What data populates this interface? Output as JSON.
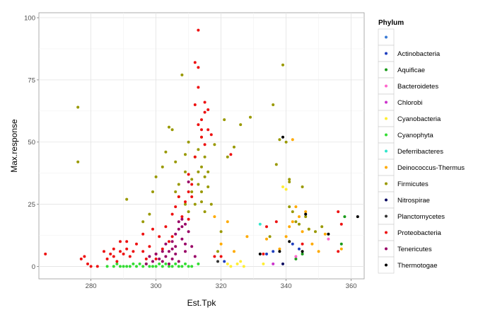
{
  "chart_data": {
    "type": "scatter",
    "title": "",
    "xlabel": "Est.Tpk",
    "ylabel": "Max.response",
    "xlim": [
      264,
      364
    ],
    "ylim": [
      -5,
      102
    ],
    "xticks": [
      280,
      300,
      320,
      340,
      360
    ],
    "yticks": [
      0,
      25,
      50,
      75,
      100
    ],
    "grid": true,
    "legend_position": "right",
    "legend_title": "Phylum",
    "series": [
      {
        "name": "",
        "color": "#3a7bd5",
        "points": []
      },
      {
        "name": "Actinobacteria",
        "color": "#1f3fbf",
        "points": [
          [
            321,
            2
          ],
          [
            334,
            5
          ],
          [
            336,
            6
          ],
          [
            342,
            9
          ],
          [
            344,
            7
          ]
        ]
      },
      {
        "name": "Aquificae",
        "color": "#1a9a1a",
        "points": [
          [
            343,
            3
          ],
          [
            345,
            5
          ],
          [
            357,
            9
          ],
          [
            358,
            20
          ]
        ]
      },
      {
        "name": "Bacteroidetes",
        "color": "#ff66cc",
        "points": [
          [
            343,
            4
          ],
          [
            353,
            11
          ]
        ]
      },
      {
        "name": "Chlorobi",
        "color": "#cc33cc",
        "points": [
          [
            336,
            1
          ]
        ]
      },
      {
        "name": "Cyanobacteria",
        "color": "#ffee33",
        "points": [
          [
            322,
            1
          ],
          [
            323,
            0
          ],
          [
            325,
            1
          ],
          [
            326,
            2
          ],
          [
            327,
            0
          ],
          [
            333,
            1
          ],
          [
            339,
            32
          ],
          [
            340,
            31
          ]
        ]
      },
      {
        "name": "Cyanophyta",
        "color": "#33dd33",
        "points": [
          [
            285,
            0
          ],
          [
            287,
            0
          ],
          [
            288,
            1
          ],
          [
            289,
            0
          ],
          [
            290,
            0
          ],
          [
            291,
            0
          ],
          [
            292,
            0
          ],
          [
            293,
            1
          ],
          [
            294,
            0
          ],
          [
            295,
            1
          ],
          [
            296,
            0
          ],
          [
            297,
            1
          ],
          [
            298,
            0
          ],
          [
            299,
            0
          ],
          [
            300,
            0
          ],
          [
            301,
            1
          ],
          [
            302,
            0
          ],
          [
            303,
            1
          ],
          [
            304,
            0
          ],
          [
            305,
            0
          ],
          [
            306,
            1
          ],
          [
            307,
            0
          ],
          [
            308,
            0
          ],
          [
            309,
            1
          ],
          [
            310,
            0
          ],
          [
            311,
            0
          ],
          [
            313,
            1
          ]
        ]
      },
      {
        "name": "Deferribacteres",
        "color": "#33e6cc",
        "points": [
          [
            332,
            17
          ]
        ]
      },
      {
        "name": "Deinococcus-Thermus",
        "color": "#ffaa00",
        "points": [
          [
            318,
            20
          ],
          [
            320,
            9
          ],
          [
            322,
            18
          ],
          [
            324,
            6
          ],
          [
            328,
            12
          ],
          [
            334,
            11
          ],
          [
            338,
            7
          ],
          [
            340,
            12
          ],
          [
            341,
            16
          ],
          [
            342,
            51
          ],
          [
            342,
            18
          ],
          [
            343,
            24
          ],
          [
            344,
            20
          ],
          [
            345,
            14
          ],
          [
            346,
            22
          ],
          [
            347,
            15
          ],
          [
            348,
            9
          ],
          [
            350,
            6
          ],
          [
            352,
            13
          ],
          [
            357,
            7
          ]
        ]
      },
      {
        "name": "Firmicutes",
        "color": "#999900",
        "points": [
          [
            276,
            64
          ],
          [
            276,
            42
          ],
          [
            291,
            27
          ],
          [
            296,
            18
          ],
          [
            298,
            21
          ],
          [
            299,
            30
          ],
          [
            300,
            36
          ],
          [
            302,
            40
          ],
          [
            303,
            46
          ],
          [
            304,
            56
          ],
          [
            305,
            55
          ],
          [
            306,
            42
          ],
          [
            306,
            30
          ],
          [
            307,
            33
          ],
          [
            307,
            28
          ],
          [
            308,
            77
          ],
          [
            309,
            45
          ],
          [
            309,
            38
          ],
          [
            309,
            25
          ],
          [
            310,
            22
          ],
          [
            310,
            50
          ],
          [
            311,
            35
          ],
          [
            311,
            30
          ],
          [
            312,
            44
          ],
          [
            312,
            25
          ],
          [
            313,
            47
          ],
          [
            313,
            38
          ],
          [
            313,
            33
          ],
          [
            314,
            52
          ],
          [
            314,
            40
          ],
          [
            314,
            30
          ],
          [
            314,
            26
          ],
          [
            315,
            44
          ],
          [
            315,
            36
          ],
          [
            315,
            22
          ],
          [
            316,
            38
          ],
          [
            316,
            32
          ],
          [
            317,
            25
          ],
          [
            318,
            49
          ],
          [
            319,
            6
          ],
          [
            320,
            14
          ],
          [
            321,
            59
          ],
          [
            322,
            44
          ],
          [
            324,
            48
          ],
          [
            326,
            57
          ],
          [
            329,
            60
          ],
          [
            335,
            12
          ],
          [
            336,
            65
          ],
          [
            337,
            41
          ],
          [
            338,
            51
          ],
          [
            339,
            81
          ],
          [
            340,
            50
          ],
          [
            341,
            35
          ],
          [
            341,
            34
          ],
          [
            341,
            24
          ],
          [
            342,
            22
          ],
          [
            343,
            18
          ],
          [
            344,
            17
          ],
          [
            345,
            32
          ],
          [
            346,
            20
          ],
          [
            347,
            15
          ],
          [
            349,
            14
          ],
          [
            351,
            16
          ]
        ]
      },
      {
        "name": "Nitrospirae",
        "color": "#0a0a60",
        "points": [
          [
            339,
            1
          ]
        ]
      },
      {
        "name": "Planctomycetes",
        "color": "#333333",
        "points": [
          [
            319,
            2
          ]
        ]
      },
      {
        "name": "Proteobacteria",
        "color": "#ee1111",
        "points": [
          [
            266,
            5
          ],
          [
            277,
            3
          ],
          [
            278,
            4
          ],
          [
            279,
            1
          ],
          [
            280,
            0
          ],
          [
            282,
            0
          ],
          [
            284,
            6
          ],
          [
            285,
            3
          ],
          [
            286,
            5
          ],
          [
            287,
            4
          ],
          [
            287,
            7
          ],
          [
            288,
            2
          ],
          [
            289,
            6
          ],
          [
            289,
            10
          ],
          [
            290,
            5
          ],
          [
            291,
            7
          ],
          [
            291,
            10
          ],
          [
            292,
            4
          ],
          [
            293,
            6
          ],
          [
            294,
            9
          ],
          [
            296,
            13
          ],
          [
            296,
            6
          ],
          [
            297,
            3
          ],
          [
            298,
            8
          ],
          [
            299,
            15
          ],
          [
            300,
            3
          ],
          [
            300,
            5
          ],
          [
            301,
            12
          ],
          [
            302,
            7
          ],
          [
            303,
            16
          ],
          [
            304,
            10
          ],
          [
            305,
            12
          ],
          [
            305,
            21
          ],
          [
            306,
            24
          ],
          [
            307,
            28
          ],
          [
            308,
            20
          ],
          [
            309,
            26
          ],
          [
            310,
            30
          ],
          [
            310,
            37
          ],
          [
            310,
            19
          ],
          [
            311,
            33
          ],
          [
            311,
            28
          ],
          [
            312,
            44
          ],
          [
            312,
            65
          ],
          [
            312,
            82
          ],
          [
            313,
            95
          ],
          [
            313,
            80
          ],
          [
            313,
            72
          ],
          [
            313,
            57
          ],
          [
            314,
            55
          ],
          [
            314,
            52
          ],
          [
            314,
            59
          ],
          [
            315,
            62
          ],
          [
            315,
            66
          ],
          [
            315,
            49
          ],
          [
            316,
            63
          ],
          [
            316,
            55
          ],
          [
            317,
            53
          ],
          [
            318,
            4
          ],
          [
            320,
            4
          ],
          [
            323,
            45
          ],
          [
            333,
            5
          ],
          [
            334,
            16
          ],
          [
            337,
            18
          ],
          [
            345,
            9
          ],
          [
            356,
            6
          ],
          [
            356,
            22
          ],
          [
            357,
            17
          ]
        ]
      },
      {
        "name": "Tenericutes",
        "color": "#990066",
        "points": [
          [
            297,
            1
          ],
          [
            298,
            4
          ],
          [
            299,
            2
          ],
          [
            300,
            5
          ],
          [
            301,
            3
          ],
          [
            302,
            6
          ],
          [
            302,
            2
          ],
          [
            303,
            9
          ],
          [
            303,
            4
          ],
          [
            304,
            6
          ],
          [
            304,
            1
          ],
          [
            305,
            10
          ],
          [
            305,
            7
          ],
          [
            305,
            3
          ],
          [
            306,
            8
          ],
          [
            306,
            5
          ],
          [
            306,
            13
          ],
          [
            307,
            2
          ],
          [
            307,
            18
          ],
          [
            307,
            15
          ],
          [
            308,
            19
          ],
          [
            308,
            16
          ],
          [
            308,
            11
          ],
          [
            309,
            17
          ],
          [
            309,
            9
          ],
          [
            309,
            6
          ],
          [
            310,
            14
          ],
          [
            310,
            34
          ],
          [
            311,
            8
          ],
          [
            312,
            4
          ]
        ]
      },
      {
        "name": "Thermotogae",
        "color": "#000000",
        "points": [
          [
            332,
            5
          ],
          [
            338,
            6
          ],
          [
            339,
            52
          ],
          [
            341,
            10
          ],
          [
            345,
            6
          ],
          [
            346,
            21
          ],
          [
            353,
            13
          ],
          [
            362,
            20
          ]
        ]
      }
    ]
  }
}
